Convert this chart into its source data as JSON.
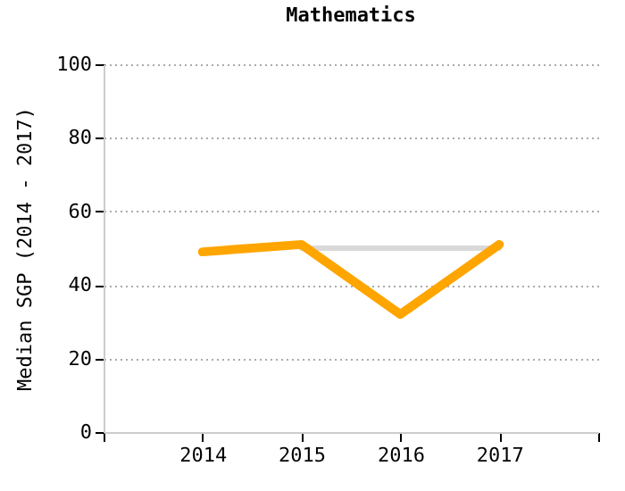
{
  "chart_data": {
    "type": "line",
    "title": "Mathematics",
    "ylabel": "Median SGP (2014 - 2017)",
    "x": [
      2014,
      2015,
      2016,
      2017
    ],
    "series": [
      {
        "color": "#d9d9d9",
        "values": [
          null,
          50,
          50,
          50
        ]
      },
      {
        "color": "#ffa500",
        "values": [
          49,
          51,
          32,
          51
        ]
      }
    ],
    "xlim": [
      2013,
      2018
    ],
    "xticks": [
      {
        "value": 2013,
        "label": null
      },
      2014,
      2015,
      2016,
      2017,
      {
        "value": 2018,
        "label": null
      }
    ],
    "ylim": [
      0,
      100
    ],
    "yticks": [
      0,
      20,
      40,
      60,
      80,
      100
    ],
    "grid": "y",
    "marker": "none",
    "line_style": "solid"
  }
}
